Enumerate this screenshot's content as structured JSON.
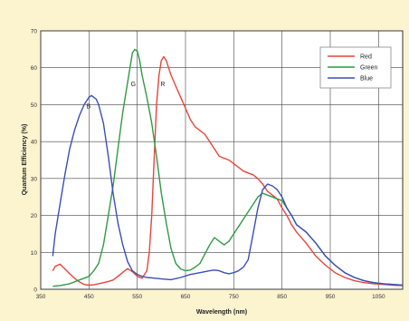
{
  "chart_data": {
    "type": "line",
    "title": "",
    "xlabel": "Wavelength (nm)",
    "ylabel": "Quantum Efficiency (%)",
    "xlim": [
      350,
      1100
    ],
    "ylim": [
      0,
      70
    ],
    "xticks": [
      350,
      450,
      550,
      650,
      750,
      850,
      950,
      1050
    ],
    "yticks": [
      0,
      10,
      20,
      30,
      40,
      50,
      60,
      70
    ],
    "grid": true,
    "legend_position": "top-right",
    "series": [
      {
        "name": "Red",
        "color": "#e8453c",
        "label": "R",
        "label_point": [
          603,
          55
        ],
        "x": [
          375,
          380,
          390,
          400,
          410,
          420,
          430,
          440,
          450,
          460,
          470,
          480,
          490,
          500,
          510,
          520,
          530,
          540,
          550,
          560,
          570,
          575,
          580,
          585,
          590,
          595,
          600,
          605,
          610,
          615,
          620,
          630,
          640,
          650,
          660,
          670,
          680,
          690,
          700,
          710,
          720,
          730,
          740,
          750,
          760,
          770,
          780,
          790,
          800,
          810,
          820,
          830,
          840,
          850,
          860,
          870,
          880,
          900,
          920,
          940,
          960,
          980,
          1000,
          1020,
          1040,
          1060,
          1080,
          1100
        ],
        "y": [
          5,
          6.2,
          6.8,
          5.5,
          4.2,
          3,
          2,
          1.3,
          1.1,
          1.2,
          1.5,
          1.8,
          2.1,
          2.5,
          3.5,
          4.6,
          5.6,
          4.8,
          3.5,
          3,
          5,
          10,
          20,
          35,
          50,
          58,
          62,
          63,
          62,
          60,
          58,
          55,
          52,
          49,
          46,
          44,
          43,
          42,
          40,
          38,
          36,
          35.5,
          35,
          34,
          33,
          32,
          31.5,
          31,
          30,
          28.5,
          26.5,
          25.5,
          24.5,
          22,
          20,
          17.5,
          15.5,
          12.5,
          9,
          6.5,
          4.5,
          3.2,
          2.3,
          1.8,
          1.5,
          1.3,
          1.1,
          1
        ]
      },
      {
        "name": "Green",
        "color": "#2f9a45",
        "label": "G",
        "label_point": [
          542,
          55
        ],
        "x": [
          375,
          390,
          410,
          430,
          450,
          460,
          470,
          480,
          490,
          500,
          510,
          520,
          530,
          540,
          545,
          550,
          555,
          560,
          570,
          580,
          590,
          600,
          610,
          620,
          630,
          640,
          650,
          660,
          670,
          680,
          690,
          700,
          710,
          720,
          730,
          740,
          750,
          760,
          770,
          780,
          790,
          800,
          810,
          820,
          830,
          840,
          850,
          860,
          870,
          880,
          900,
          920,
          940,
          960,
          980,
          1000,
          1020,
          1040,
          1060,
          1080,
          1100
        ],
        "y": [
          0.8,
          1,
          1.5,
          2.5,
          3.5,
          5,
          7,
          12,
          20,
          28,
          38,
          48,
          56,
          64,
          65,
          64.5,
          62,
          58,
          52,
          45,
          36,
          26,
          18,
          11,
          7,
          5.5,
          5,
          5.2,
          6,
          7,
          9.5,
          12,
          14,
          13,
          12,
          13,
          15,
          17,
          19,
          21,
          23,
          25,
          26,
          25.5,
          25,
          24.5,
          24,
          22,
          20,
          17.5,
          15.5,
          12.5,
          9,
          6.5,
          4.5,
          3.2,
          2.3,
          1.8,
          1.5,
          1.3,
          1.1
        ]
      },
      {
        "name": "Blue",
        "color": "#3a4fb8",
        "label": "B",
        "label_point": [
          449,
          49
        ],
        "x": [
          375,
          380,
          390,
          400,
          410,
          420,
          430,
          440,
          450,
          455,
          460,
          465,
          470,
          480,
          490,
          500,
          510,
          520,
          530,
          540,
          550,
          560,
          570,
          580,
          600,
          620,
          640,
          660,
          680,
          700,
          710,
          720,
          730,
          740,
          750,
          760,
          770,
          780,
          790,
          800,
          810,
          820,
          830,
          840,
          850,
          860,
          870,
          880,
          900,
          920,
          940,
          960,
          980,
          1000,
          1020,
          1040,
          1060,
          1080,
          1100
        ],
        "y": [
          9,
          15,
          23,
          31,
          38,
          43,
          47,
          50,
          52,
          52.5,
          52,
          51.5,
          50,
          45,
          36,
          26,
          18,
          12,
          7.5,
          5,
          4,
          3.5,
          3.2,
          3.1,
          2.8,
          2.6,
          3.2,
          4,
          4.5,
          5,
          5.2,
          5,
          4.5,
          4.2,
          4.5,
          5,
          6,
          8,
          15,
          22,
          27,
          28.5,
          28,
          27,
          25,
          22,
          20,
          17.5,
          15.5,
          12.5,
          9,
          6.5,
          4.5,
          3.2,
          2.3,
          1.8,
          1.5,
          1.3,
          1.1
        ]
      }
    ]
  }
}
